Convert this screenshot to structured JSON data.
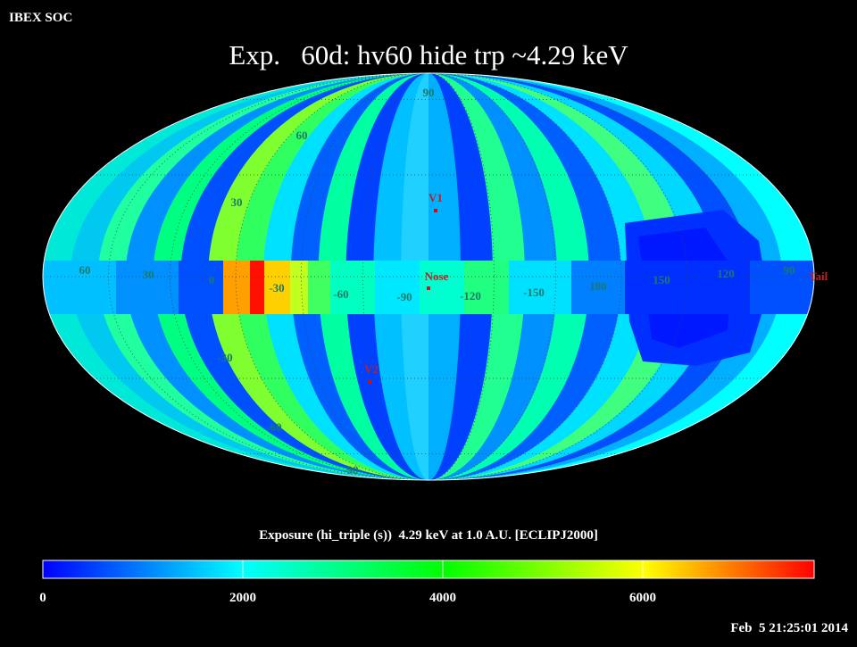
{
  "header": "IBEX SOC",
  "title": "Exp.   60d: hv60 hide trp ~4.29 keV",
  "map": {
    "lat_labels": [
      "90",
      "60",
      "30",
      "0",
      "-30",
      "-60",
      "-90"
    ],
    "lon_labels": [
      "60",
      "30",
      "-30",
      "-60",
      "-90",
      "-120",
      "-150",
      "180",
      "150",
      "120",
      "90"
    ],
    "markers": [
      "V1",
      "Nose",
      "V2",
      "Tail"
    ]
  },
  "colorbar": {
    "title": "Exposure (hi_triple (s))  4.29 keV at 1.0 A.U. [ECLIPJ2000]",
    "range": [
      0,
      7714
    ],
    "ticks": [
      0,
      2000,
      4000,
      6000
    ]
  },
  "timestamp": "Feb  5 21:25:01 2014"
}
